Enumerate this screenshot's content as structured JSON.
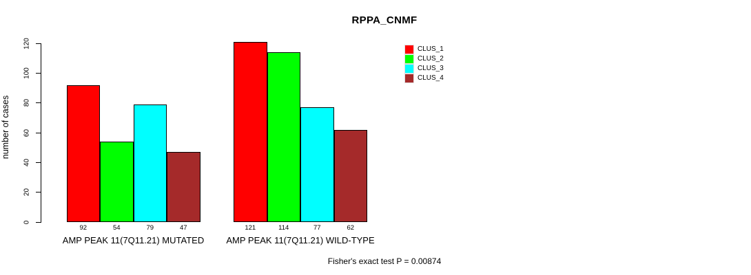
{
  "title": "RPPA_CNMF",
  "y_axis": {
    "label": "number of cases",
    "ticks": [
      0,
      20,
      40,
      60,
      80,
      100,
      120
    ]
  },
  "footer_note": "Fisher's exact test P = 0.00874",
  "chart_data": {
    "type": "bar",
    "title": "RPPA_CNMF",
    "xlabel": "",
    "ylabel": "number of cases",
    "ylim": [
      0,
      120
    ],
    "yticks": [
      0,
      20,
      40,
      60,
      80,
      100,
      120
    ],
    "grid": false,
    "legend_position": "top-right",
    "bar_value_labels": true,
    "categories": [
      "AMP PEAK 11(7Q11.21) MUTATED",
      "AMP PEAK 11(7Q11.21) WILD-TYPE"
    ],
    "series": [
      {
        "name": "CLUS_1",
        "color": "#ff0000",
        "values": [
          92,
          121
        ]
      },
      {
        "name": "CLUS_2",
        "color": "#00ff00",
        "values": [
          54,
          114
        ]
      },
      {
        "name": "CLUS_3",
        "color": "#00ffff",
        "values": [
          79,
          77
        ]
      },
      {
        "name": "CLUS_4",
        "color": "#a52a2a",
        "values": [
          47,
          62
        ]
      }
    ],
    "annotation": "Fisher's exact test P = 0.00874"
  }
}
